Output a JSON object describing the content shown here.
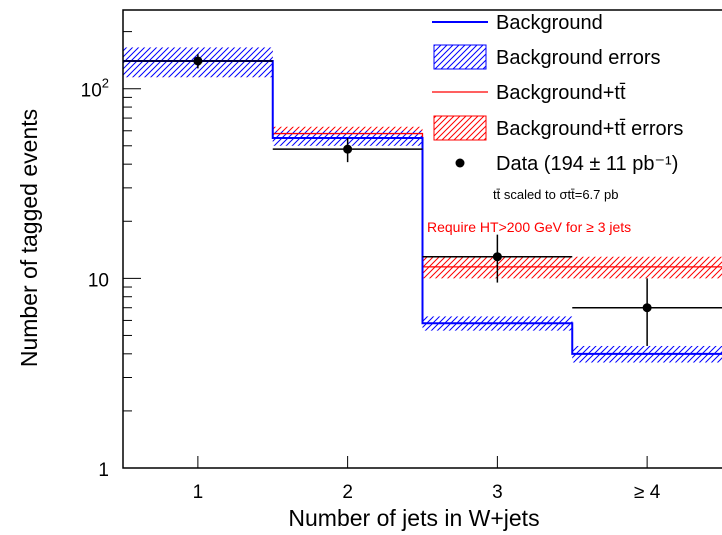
{
  "chart_data": {
    "type": "histogram",
    "title": "",
    "xlabel": "Number of jets in W+jets",
    "ylabel": "Number of tagged events",
    "y_scale": "log",
    "ylim": [
      1,
      260
    ],
    "categories": [
      "1",
      "2",
      "3",
      "≥ 4"
    ],
    "y_ticks": [
      {
        "value": 1,
        "base": "1",
        "exp": ""
      },
      {
        "value": 10,
        "base": "10",
        "exp": ""
      },
      {
        "value": 100,
        "base": "10",
        "exp": "2"
      }
    ],
    "series": [
      {
        "name": "Background",
        "color": "#0000ff",
        "values": [
          140,
          55,
          5.8,
          4.0
        ],
        "errors": [
          25,
          5,
          0.5,
          0.4
        ]
      },
      {
        "name": "Background+tt̄",
        "color": "#ff0000",
        "values": [
          140,
          58,
          11.5,
          11.5
        ],
        "errors": [
          25,
          5,
          1.5,
          1.5
        ]
      },
      {
        "name": "Data (194 ± 11 pb⁻¹)",
        "color": "#000000",
        "values": [
          140,
          48,
          13,
          7
        ],
        "errors_low": [
          12,
          7,
          3.5,
          2.6
        ],
        "errors_high": [
          12,
          7,
          4,
          3
        ]
      }
    ],
    "legend": {
      "placement": "top-right",
      "entries": [
        {
          "key": "bkg",
          "text": "Background"
        },
        {
          "key": "bkg_err",
          "text": "Background errors"
        },
        {
          "key": "sig",
          "text": "Background+tt̄"
        },
        {
          "key": "sig_err",
          "text": "Background+tt̄ errors"
        },
        {
          "key": "data",
          "text": "Data (194 ± 11 pb⁻¹)"
        }
      ]
    },
    "annotations": {
      "scaled_note": "tt̄ scaled to σtt̄=6.7 pb",
      "ht_note": "Require HT>200 GeV for ≥ 3 jets",
      "ht_note_color": "#ff0000"
    }
  }
}
